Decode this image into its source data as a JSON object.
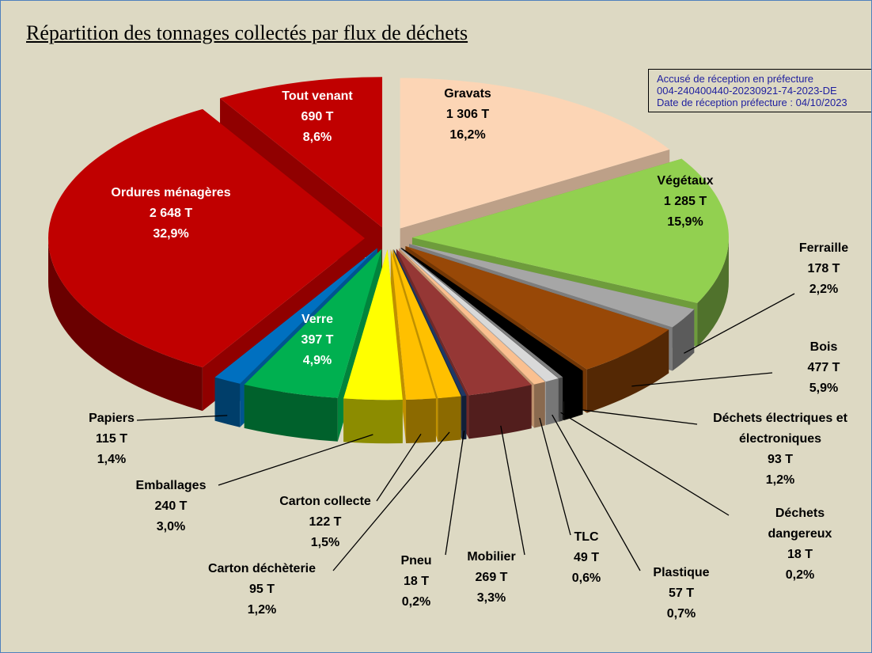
{
  "chart_data": {
    "type": "pie3d",
    "title": "Répartition des tonnages collectés par flux de déchets",
    "stamp": [
      "Accusé de réception en préfecture",
      "004-240400440-20230921-74-2023-DE",
      "Date de réception préfecture : 04/10/2023"
    ],
    "categories": [
      "Gravats",
      "Végétaux",
      "Ferraille",
      "Bois",
      "Déchets électriques et électroniques",
      "Déchets dangereux",
      "Plastique",
      "TLC",
      "Mobilier",
      "Pneu",
      "Carton déchèterie",
      "Carton collecte",
      "Emballages",
      "Verre",
      "Papiers",
      "Ordures ménagères",
      "Tout venant"
    ],
    "values": [
      1306,
      1285,
      178,
      477,
      93,
      18,
      57,
      49,
      269,
      18,
      95,
      122,
      240,
      397,
      115,
      2648,
      690
    ],
    "value_labels": [
      "1 306 T",
      "1 285 T",
      "178 T",
      "477 T",
      "93 T",
      "18 T",
      "57 T",
      "49 T",
      "269 T",
      "18 T",
      "95 T",
      "122 T",
      "240 T",
      "397 T",
      "115 T",
      "2 648 T",
      "690 T"
    ],
    "percents": [
      16.2,
      15.9,
      2.2,
      5.9,
      1.2,
      0.2,
      0.7,
      0.6,
      3.3,
      0.2,
      1.2,
      1.5,
      3.0,
      4.9,
      1.4,
      32.9,
      8.6
    ],
    "percent_labels": [
      "16,2%",
      "15,9%",
      "2,2%",
      "5,9%",
      "1,2%",
      "0,2%",
      "0,7%",
      "0,6%",
      "3,3%",
      "0,2%",
      "1,2%",
      "1,5%",
      "3,0%",
      "4,9%",
      "1,4%",
      "32,9%",
      "8,6%"
    ],
    "colors": [
      "#fcd5b5",
      "#92d050",
      "#a6a6a6",
      "#984807",
      "#000000",
      "#7f7f7f",
      "#d9d9d9",
      "#fac090",
      "#953735",
      "#1f3864",
      "#ffc000",
      "#ffc000",
      "#ffff00",
      "#00b050",
      "#0070c0",
      "#c00000",
      "#c00000"
    ]
  }
}
